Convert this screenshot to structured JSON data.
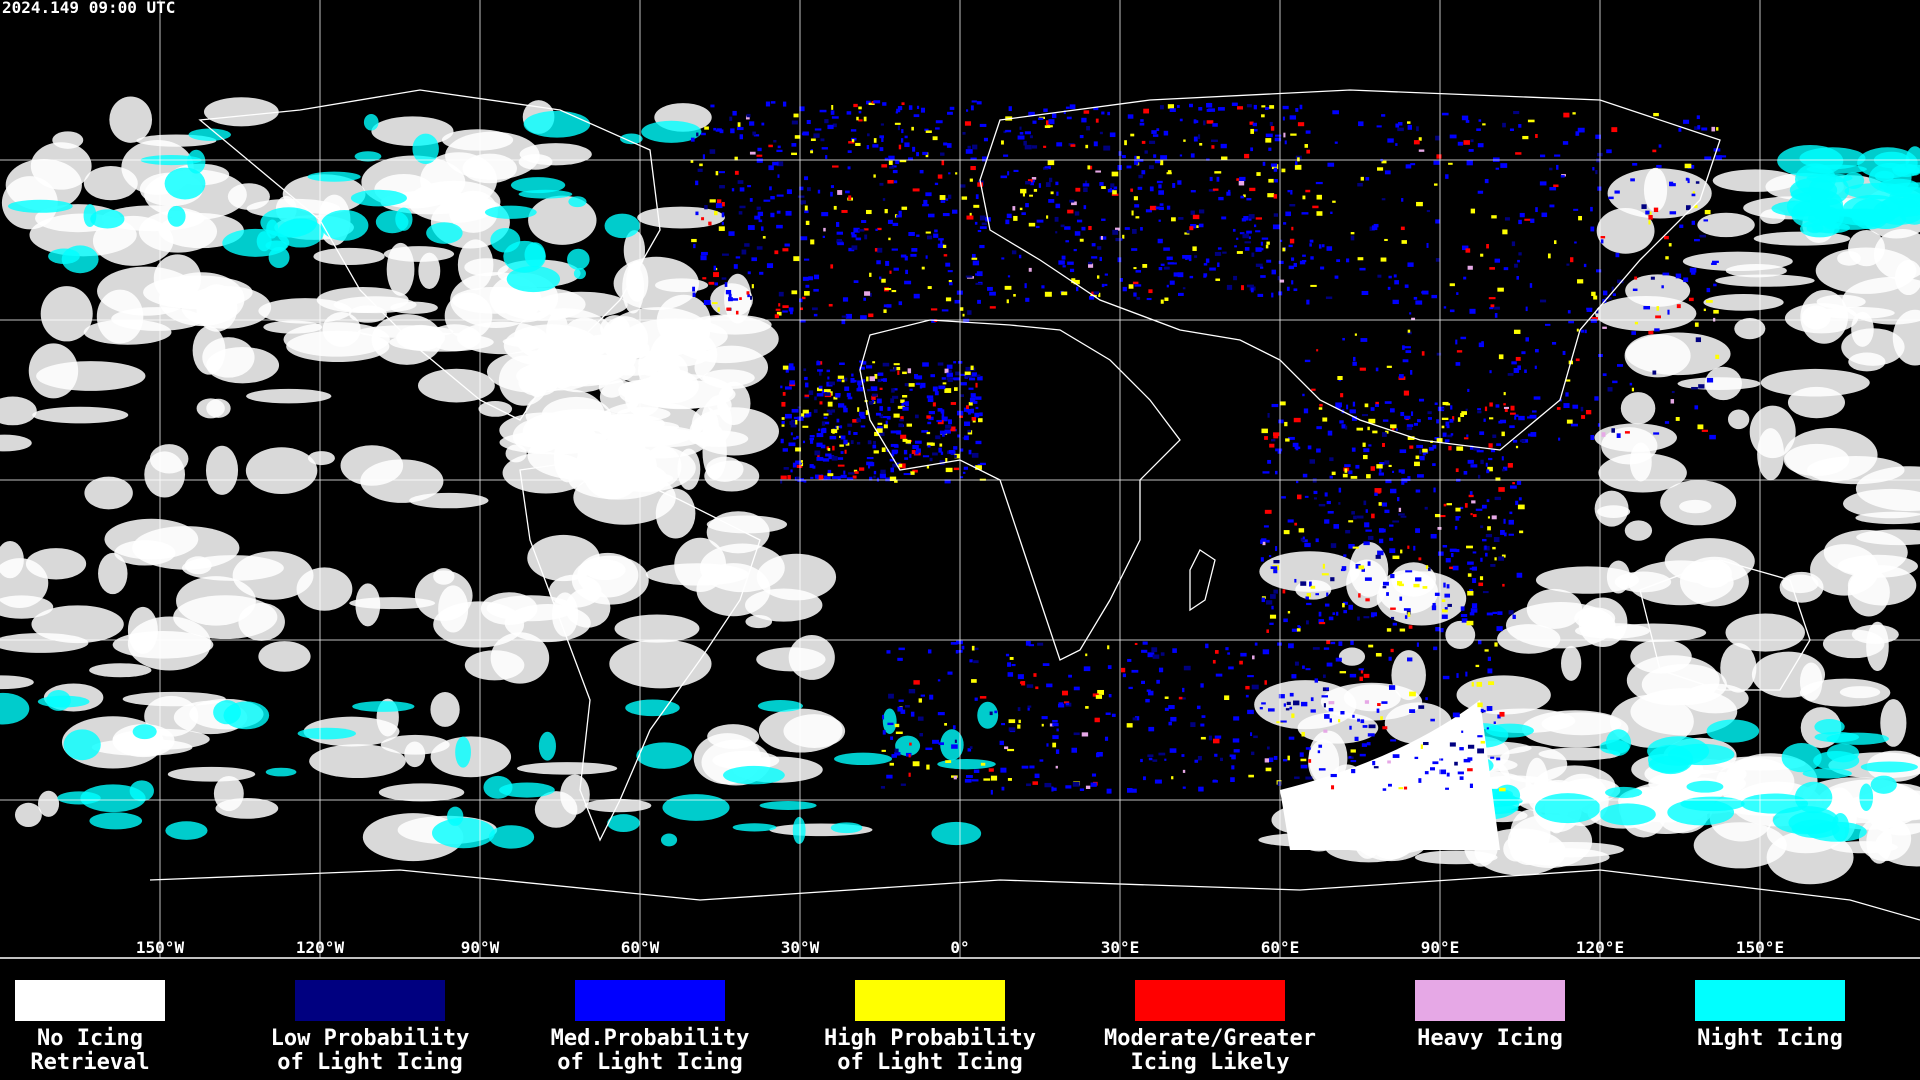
{
  "header": {
    "timestamp": "2024.149 09:00 UTC"
  },
  "map": {
    "lon_labels": [
      "150°W",
      "120°W",
      "90°W",
      "60°W",
      "30°W",
      "0°",
      "30°E",
      "60°E",
      "90°E",
      "120°E",
      "150°E"
    ]
  },
  "legend": {
    "items": [
      {
        "color": "#ffffff",
        "lines": [
          "No Icing",
          "Retrieval"
        ]
      },
      {
        "color": "#000080",
        "lines": [
          "Low Probability",
          "of Light Icing"
        ]
      },
      {
        "color": "#0000ff",
        "lines": [
          "Med.Probability",
          "of Light Icing"
        ]
      },
      {
        "color": "#ffff00",
        "lines": [
          "High Probability",
          "of Light Icing"
        ]
      },
      {
        "color": "#ff0000",
        "lines": [
          "Moderate/Greater",
          "Icing Likely"
        ]
      },
      {
        "color": "#e6a8e6",
        "lines": [
          "Heavy Icing"
        ]
      },
      {
        "color": "#00ffff",
        "lines": [
          "Night Icing"
        ]
      }
    ]
  }
}
